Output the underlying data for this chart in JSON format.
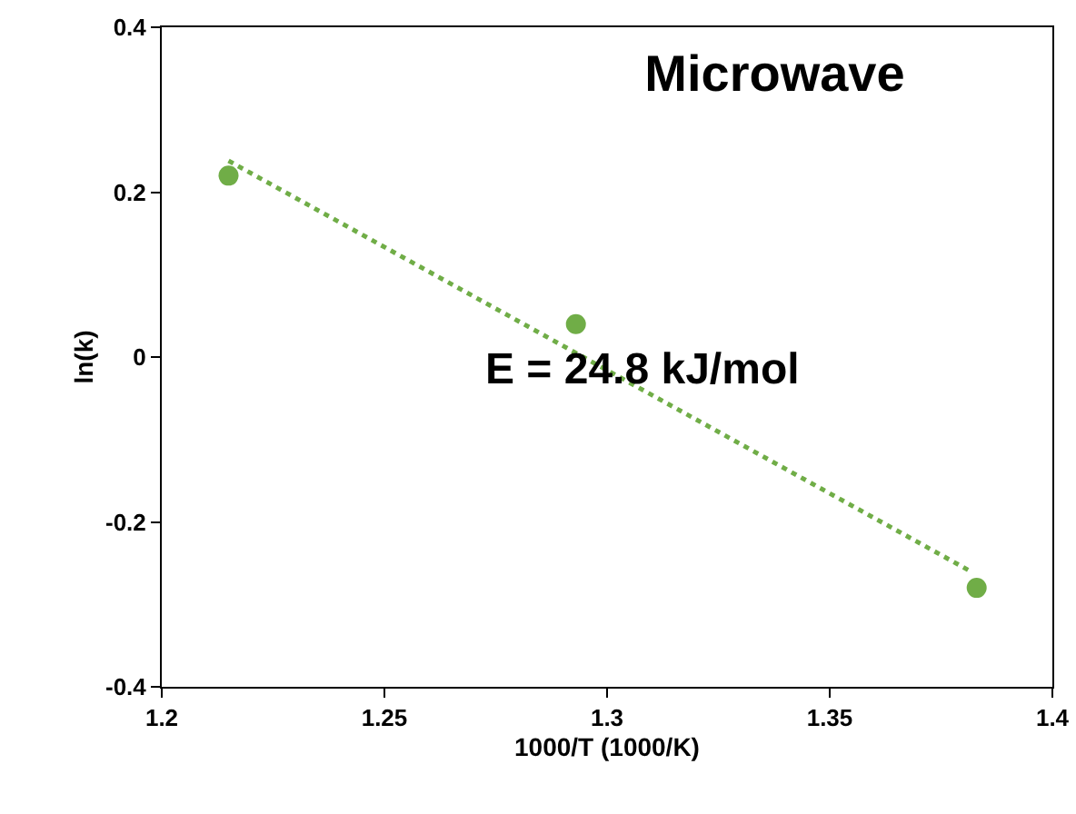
{
  "chart_data": {
    "type": "scatter",
    "title": "Microwave",
    "xlabel": "1000/T (1000/K)",
    "ylabel": "ln(k)",
    "annotations": [
      "E = 24.8 kJ/mol"
    ],
    "xlim": [
      1.2,
      1.4
    ],
    "xticks": [
      1.2,
      1.25,
      1.3,
      1.35,
      1.4
    ],
    "ylim": [
      -0.4,
      0.4
    ],
    "yticks": [
      -0.4,
      -0.2,
      0,
      0.2,
      0.4
    ],
    "grid": false,
    "marker": "circle",
    "series": [
      {
        "color": "#70ad47",
        "x": [
          1.215,
          1.293,
          1.383
        ],
        "values": [
          0.22,
          0.04,
          -0.28
        ]
      },
      {
        "type": "line",
        "color": "#70ad47",
        "line_style": "dotted",
        "marker": "none",
        "x": [
          1.215,
          1.382
        ],
        "values": [
          0.238,
          -0.261
        ]
      }
    ]
  }
}
